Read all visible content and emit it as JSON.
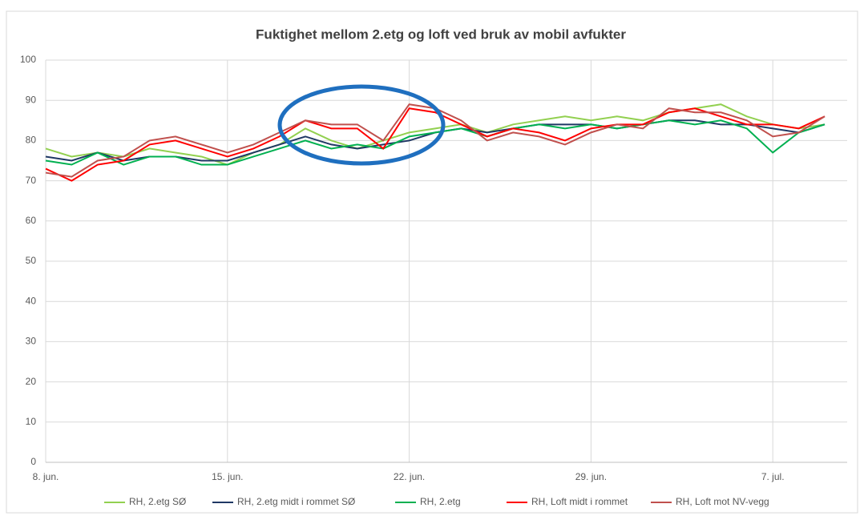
{
  "chart_data": {
    "type": "line",
    "title": "Fuktighet mellom 2.etg og loft ved bruk av mobil avfukter",
    "categories": [
      "8. jun.",
      null,
      null,
      null,
      null,
      null,
      null,
      "15. jun.",
      null,
      null,
      null,
      null,
      null,
      null,
      "22. jun.",
      null,
      null,
      null,
      null,
      null,
      null,
      "29. jun.",
      null,
      null,
      null,
      null,
      null,
      null,
      "7. jul.",
      null,
      null
    ],
    "series": [
      {
        "name": "RH, 2.etg SØ",
        "color": "#92d050",
        "values": [
          78,
          76,
          77,
          76,
          78,
          77,
          76,
          74,
          77,
          79,
          83,
          80,
          78,
          80,
          82,
          83,
          84,
          82,
          84,
          85,
          86,
          85,
          86,
          85,
          87,
          88,
          89,
          86,
          84,
          83,
          84
        ]
      },
      {
        "name": "RH, 2.etg midt i rommet SØ",
        "color": "#1f3864",
        "values": [
          76,
          75,
          77,
          75,
          76,
          76,
          75,
          75,
          77,
          79,
          81,
          79,
          78,
          79,
          80,
          82,
          83,
          82,
          83,
          84,
          84,
          84,
          83,
          84,
          85,
          85,
          84,
          84,
          83,
          82,
          84
        ]
      },
      {
        "name": "RH, 2.etg",
        "color": "#00b050",
        "values": [
          75,
          74,
          77,
          74,
          76,
          76,
          74,
          74,
          76,
          78,
          80,
          78,
          79,
          78,
          81,
          82,
          83,
          81,
          83,
          84,
          83,
          84,
          83,
          84,
          85,
          84,
          85,
          83,
          77,
          82,
          84
        ]
      },
      {
        "name": "RH, Loft midt i rommet",
        "color": "#ff0000",
        "values": [
          73,
          70,
          74,
          75,
          79,
          80,
          78,
          76,
          78,
          81,
          85,
          83,
          83,
          78,
          88,
          87,
          84,
          81,
          83,
          82,
          80,
          83,
          84,
          84,
          87,
          88,
          86,
          84,
          84,
          83,
          86
        ]
      },
      {
        "name": "RH, Loft mot NV-vegg",
        "color": "#c0504d",
        "values": [
          72,
          71,
          75,
          76,
          80,
          81,
          79,
          77,
          79,
          82,
          85,
          84,
          84,
          80,
          89,
          88,
          85,
          80,
          82,
          81,
          79,
          82,
          84,
          83,
          88,
          87,
          87,
          85,
          81,
          82,
          86
        ]
      }
    ],
    "ylim": [
      0,
      100
    ],
    "yticks": [
      0,
      10,
      20,
      30,
      40,
      50,
      60,
      70,
      80,
      90,
      100
    ],
    "grid": true,
    "legend": "bottom"
  }
}
